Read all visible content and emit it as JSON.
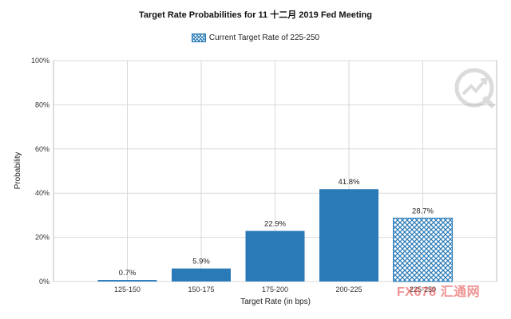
{
  "chart_data": {
    "type": "bar",
    "title": "Target Rate Probabilities for 11 十二月 2019 Fed Meeting",
    "legend": {
      "label": "Current Target Rate of 225-250",
      "placement": "top-center"
    },
    "xlabel": "Target Rate (in bps)",
    "ylabel": "Probability",
    "categories": [
      "125-150",
      "150-175",
      "175-200",
      "200-225",
      "225-250"
    ],
    "values": [
      0.7,
      5.9,
      22.9,
      41.8,
      28.7
    ],
    "data_labels": [
      "0.7%",
      "5.9%",
      "22.9%",
      "41.8%",
      "28.7%"
    ],
    "highlighted_category": "225-250",
    "ylim": [
      0,
      100
    ],
    "yticks": [
      0,
      20,
      40,
      60,
      80,
      100
    ],
    "ytick_labels": [
      "0%",
      "20%",
      "40%",
      "60%",
      "80%",
      "100%"
    ],
    "grid": true,
    "colors": {
      "bar": "#2a7ab8",
      "grid": "#d9d9d9",
      "axis": "#bbbbbb"
    }
  },
  "watermark": {
    "text": "FX678 汇通网",
    "logo_icon": "chart-arrow-logo-icon"
  }
}
